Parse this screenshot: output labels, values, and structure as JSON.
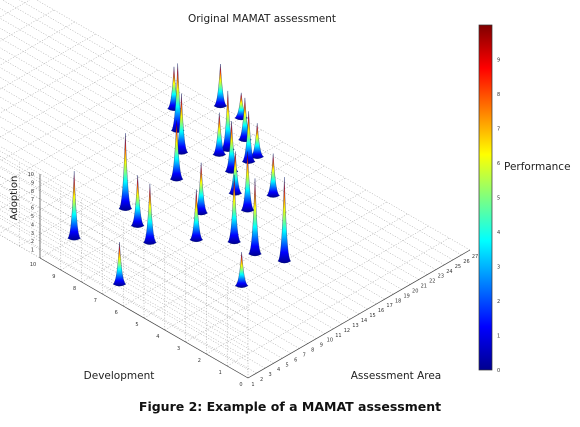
{
  "chart_data": {
    "type": "3d-surface",
    "title": "Original MAMAT assessment",
    "xlabel": "Assessment Area",
    "ylabel": "Development",
    "zlabel": "Adoption",
    "colorbar_label": "Performance",
    "x_ticks": [
      "1",
      "2",
      "3",
      "4",
      "5",
      "6",
      "7",
      "8",
      "9",
      "10",
      "11",
      "12",
      "13",
      "14",
      "15",
      "16",
      "17",
      "18",
      "19",
      "20",
      "21",
      "22",
      "23",
      "24",
      "25",
      "26",
      "27"
    ],
    "y_ticks": [
      "0",
      "1",
      "2",
      "3",
      "4",
      "5",
      "6",
      "7",
      "8",
      "9",
      "10"
    ],
    "z_ticks": [
      "1",
      "2",
      "3",
      "4",
      "5",
      "6",
      "7",
      "8",
      "9",
      "10"
    ],
    "colorbar_ticks": [
      "0",
      "1",
      "2",
      "3",
      "4",
      "5",
      "6",
      "7",
      "8",
      "9"
    ],
    "xlim": [
      1,
      27
    ],
    "ylim": [
      0,
      10
    ],
    "zlim": [
      0,
      10
    ],
    "clim": [
      0,
      10
    ],
    "colormap": "jet",
    "grid": true,
    "peaks": [
      {
        "x": 3,
        "y": 7,
        "z": 5
      },
      {
        "x": 5,
        "y": 10,
        "z": 8
      },
      {
        "x": 10,
        "y": 4,
        "z": 4
      },
      {
        "x": 9,
        "y": 8,
        "z": 7
      },
      {
        "x": 10,
        "y": 9,
        "z": 6
      },
      {
        "x": 11,
        "y": 10,
        "z": 9
      },
      {
        "x": 12,
        "y": 7,
        "z": 6
      },
      {
        "x": 14,
        "y": 5,
        "z": 9
      },
      {
        "x": 15,
        "y": 4,
        "z": 10
      },
      {
        "x": 14,
        "y": 6,
        "z": 8
      },
      {
        "x": 15,
        "y": 8,
        "z": 6
      },
      {
        "x": 18,
        "y": 7,
        "z": 7
      },
      {
        "x": 17,
        "y": 10,
        "z": 7
      },
      {
        "x": 19,
        "y": 8,
        "z": 5
      },
      {
        "x": 21,
        "y": 7,
        "z": 5
      },
      {
        "x": 21,
        "y": 9,
        "z": 6
      },
      {
        "x": 23,
        "y": 9,
        "z": 6
      },
      {
        "x": 22,
        "y": 10,
        "z": 5
      },
      {
        "x": 23,
        "y": 10,
        "z": 7
      },
      {
        "x": 24,
        "y": 9,
        "z": 4
      },
      {
        "x": 25,
        "y": 10,
        "z": 5
      },
      {
        "x": 20,
        "y": 11,
        "z": 7
      },
      {
        "x": 22,
        "y": 12,
        "z": 8
      },
      {
        "x": 24,
        "y": 13,
        "z": 5
      },
      {
        "x": 27,
        "y": 11,
        "z": 3
      },
      {
        "x": 27,
        "y": 12,
        "z": 5
      }
    ]
  },
  "figure": {
    "caption": "Figure 2: Example of a MAMAT assessment"
  }
}
